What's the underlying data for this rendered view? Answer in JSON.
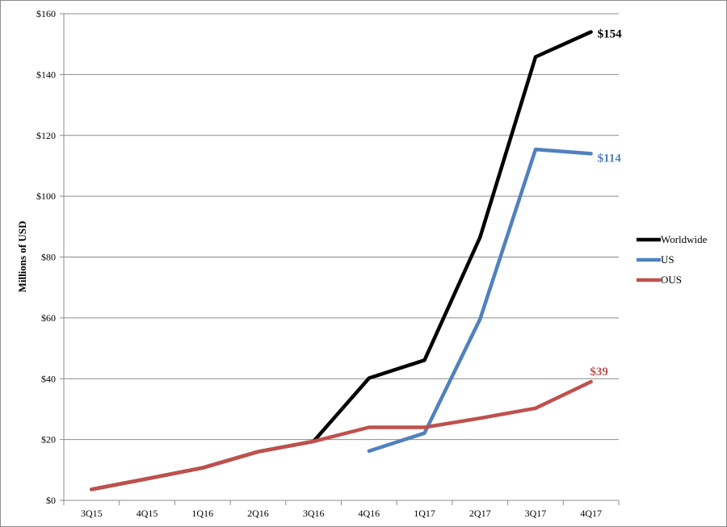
{
  "chart_data": {
    "type": "line",
    "title": "",
    "xlabel": "",
    "ylabel": "Millions of USD",
    "categories": [
      "3Q15",
      "4Q15",
      "1Q16",
      "2Q16",
      "3Q16",
      "4Q16",
      "1Q17",
      "2Q17",
      "3Q17",
      "4Q17"
    ],
    "ylim": [
      0,
      160
    ],
    "yticks": [
      0,
      20,
      40,
      60,
      80,
      100,
      120,
      140,
      160
    ],
    "ytick_labels": [
      "$0",
      "$20",
      "$40",
      "$60",
      "$80",
      "$100",
      "$120",
      "$140",
      "$160"
    ],
    "grid": "horizontal",
    "legend_position": "right",
    "series": [
      {
        "name": "Worldwide",
        "color": "#000000",
        "values": [
          3.6,
          7.1,
          10.7,
          16.0,
          19.4,
          40.2,
          46.1,
          86.5,
          145.8,
          154
        ],
        "end_label": "$154"
      },
      {
        "name": "US",
        "color": "#4f81bd",
        "values": [
          null,
          null,
          null,
          null,
          null,
          16.2,
          22.1,
          59.6,
          115.4,
          114
        ],
        "end_label": "$114"
      },
      {
        "name": "OUS",
        "color": "#c0504d",
        "values": [
          3.6,
          7.1,
          10.7,
          16.0,
          19.4,
          24.0,
          24.0,
          27.0,
          30.3,
          39
        ],
        "end_label": "$39"
      }
    ]
  }
}
